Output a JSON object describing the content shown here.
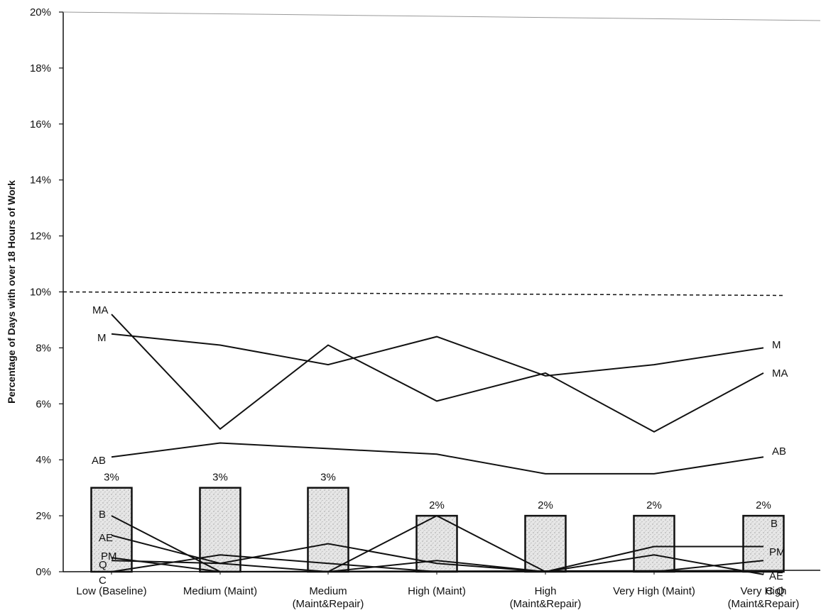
{
  "chart_data": {
    "type": "bar+line",
    "title": "",
    "xlabel": "",
    "ylabel": "Percentage of Days with over 18 Hours of Work",
    "ylim": [
      0,
      20
    ],
    "yticks": [
      "0%",
      "2%",
      "4%",
      "6%",
      "8%",
      "10%",
      "12%",
      "14%",
      "16%",
      "18%",
      "20%"
    ],
    "grid": false,
    "legend": "none",
    "categories": [
      [
        "Low (Baseline)"
      ],
      [
        "Medium (Maint)"
      ],
      [
        "Medium",
        "(Maint&Repair)"
      ],
      [
        "High (Maint)"
      ],
      [
        "High",
        "(Maint&Repair)"
      ],
      [
        "Very High (Maint)"
      ],
      [
        "Very High",
        "(Maint&Repair)"
      ]
    ],
    "bars": {
      "values": [
        3,
        3,
        3,
        2,
        2,
        2,
        2
      ],
      "labels": [
        "3%",
        "3%",
        "3%",
        "2%",
        "2%",
        "2%",
        "2%"
      ]
    },
    "threshold": {
      "value": 10,
      "style": "dashed"
    },
    "series": [
      {
        "name": "MA",
        "values": [
          9.2,
          5.1,
          8.1,
          6.1,
          7.1,
          5.0,
          7.1
        ]
      },
      {
        "name": "M",
        "values": [
          8.5,
          8.1,
          7.4,
          8.4,
          7.0,
          7.4,
          8.0
        ]
      },
      {
        "name": "AB",
        "values": [
          4.1,
          4.6,
          4.4,
          4.2,
          3.5,
          3.5,
          4.1
        ]
      },
      {
        "name": "B",
        "values": [
          2.0,
          0.0,
          0.0,
          2.0,
          0.0,
          0.9,
          0.9
        ]
      },
      {
        "name": "AE",
        "values": [
          1.3,
          0.3,
          1.0,
          0.3,
          0.0,
          0.6,
          -0.1
        ]
      },
      {
        "name": "PM",
        "values": [
          0.5,
          0.0,
          0.0,
          0.4,
          0.0,
          0.0,
          0.4
        ]
      },
      {
        "name": "Q",
        "values": [
          0.4,
          0.3,
          0.0,
          0.0,
          0.0,
          0.0,
          0.0
        ]
      },
      {
        "name": "C",
        "values": [
          0.0,
          0.6,
          0.3,
          0.0,
          0.0,
          0.0,
          0.0
        ]
      }
    ],
    "start_labels": [
      "MA",
      "M",
      "AB",
      "B",
      "AE",
      "PM",
      "Q",
      "C"
    ],
    "end_labels": [
      "M",
      "MA",
      "AB",
      "B",
      "PM",
      "AE",
      "C",
      "Q"
    ]
  }
}
